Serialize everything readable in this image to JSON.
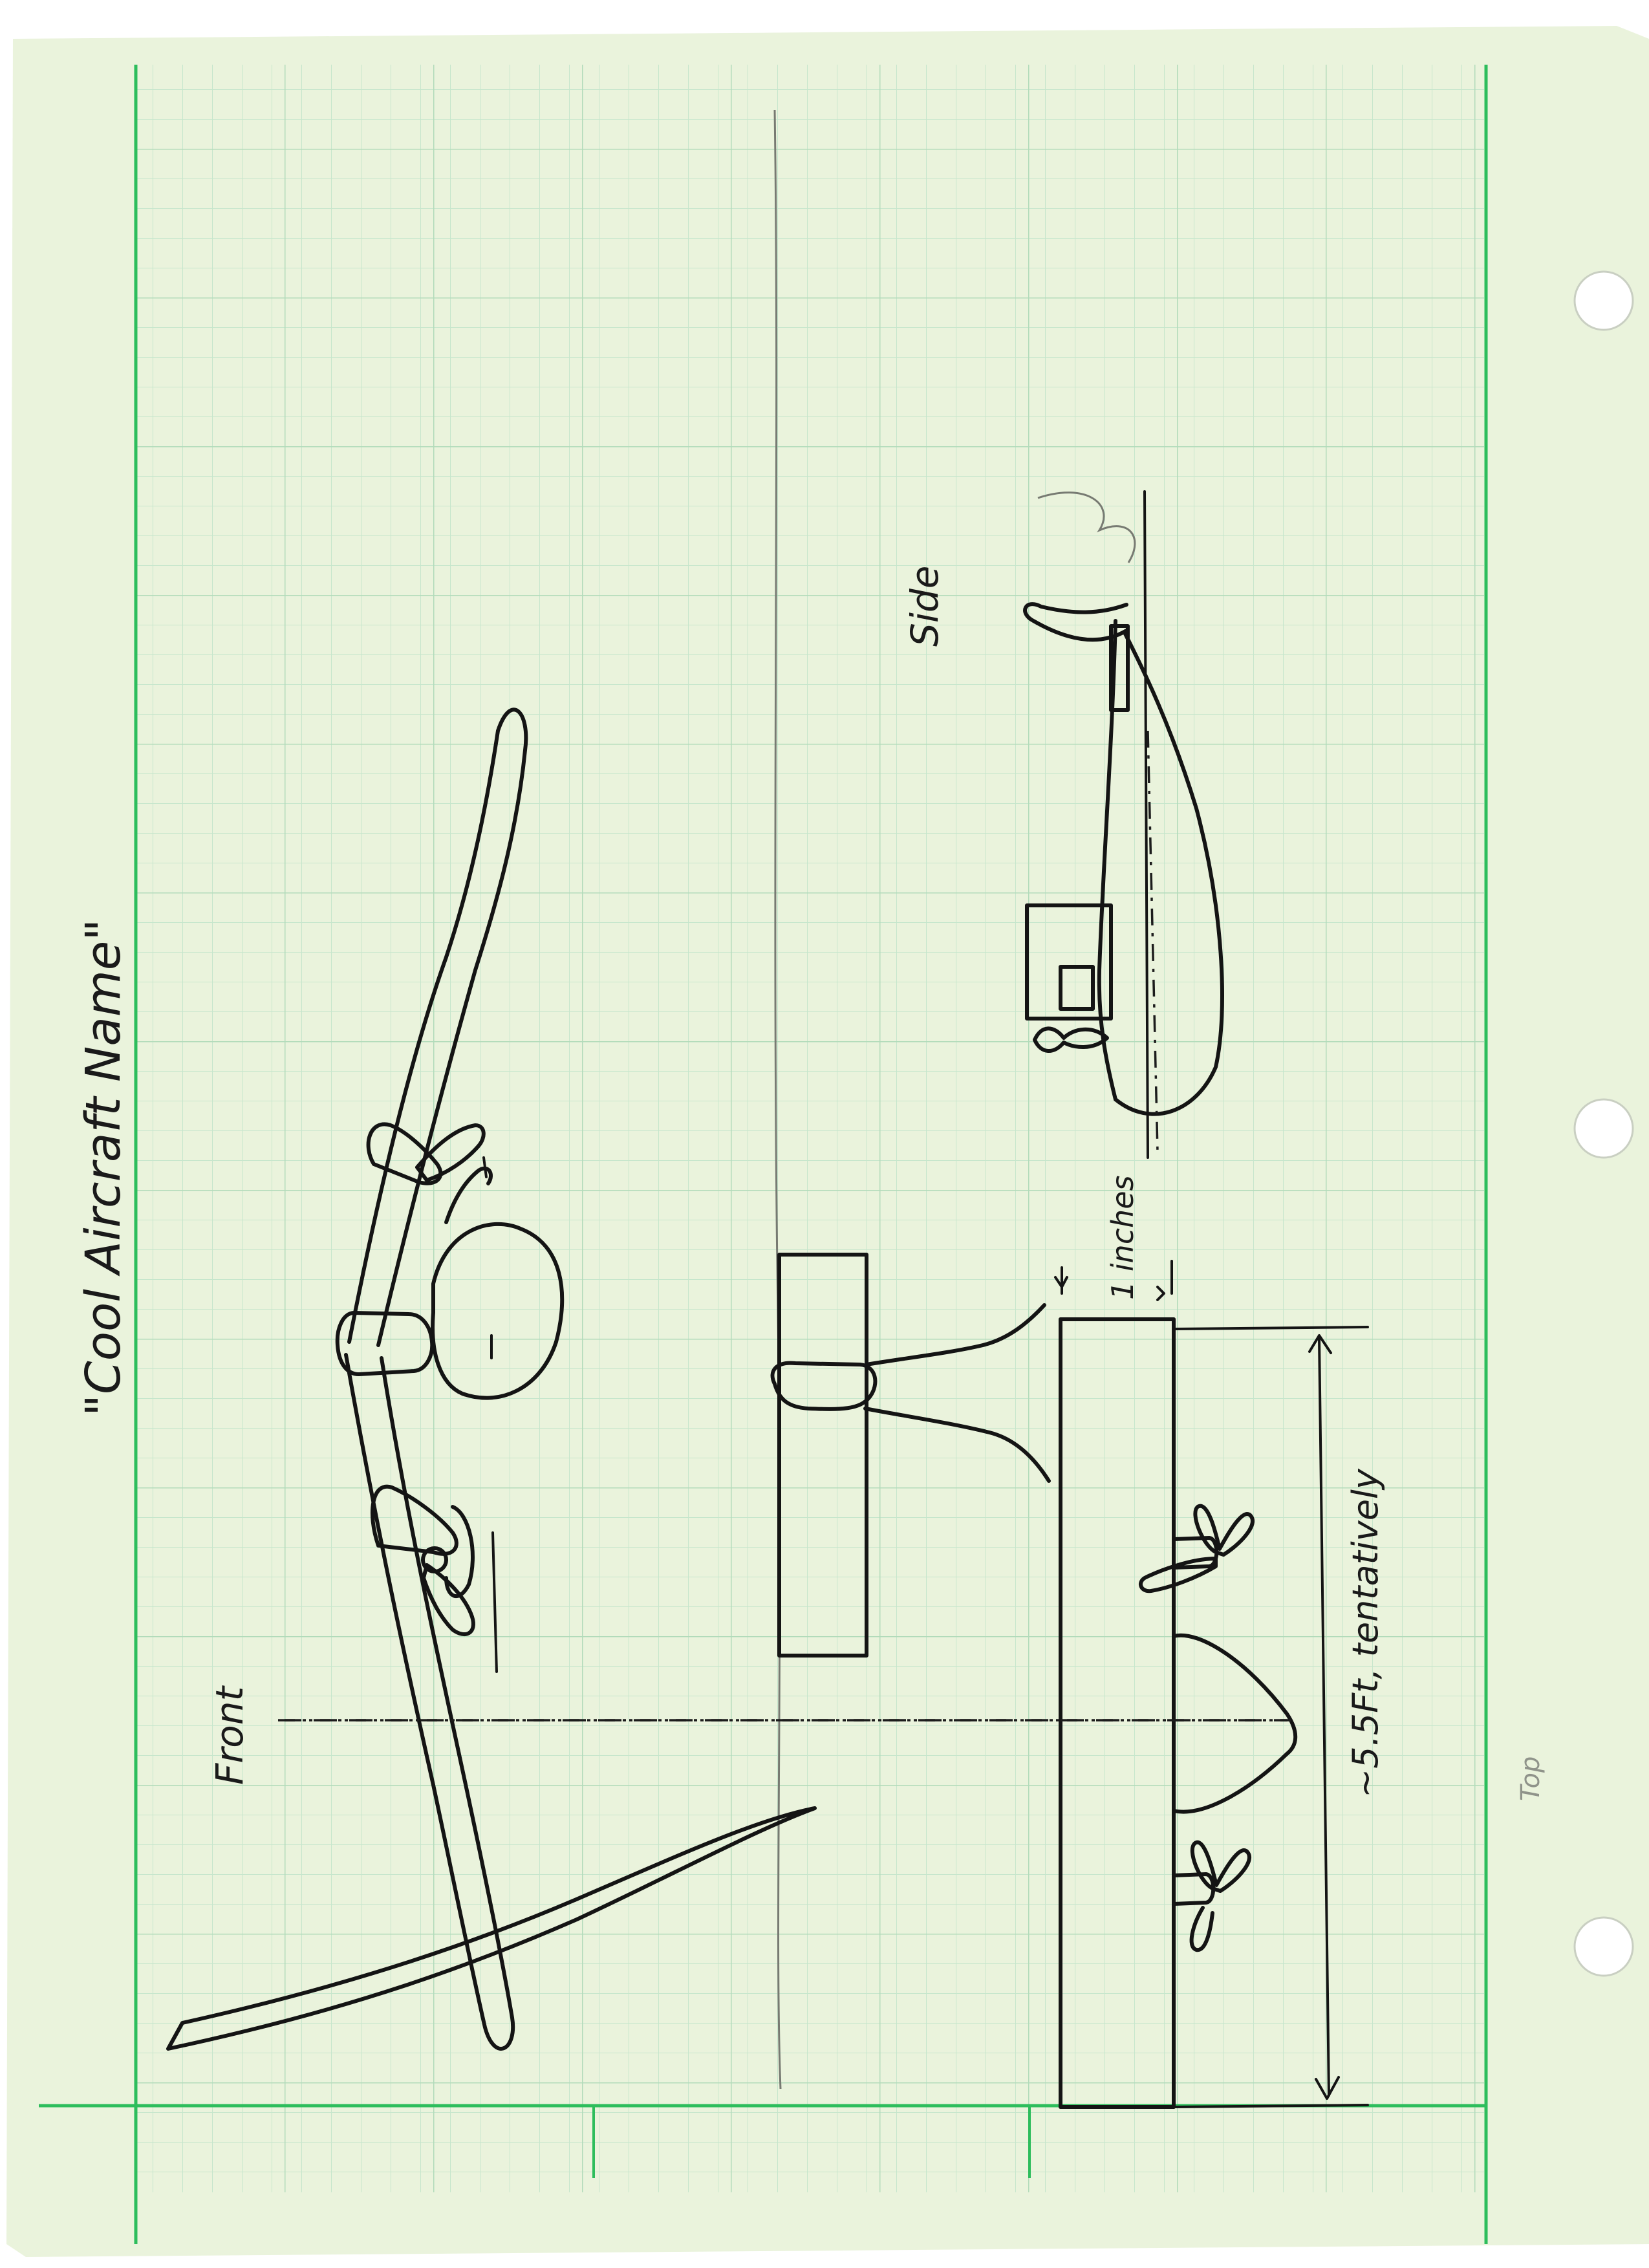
{
  "paper": {
    "color": "#eaf3dc",
    "grid_color": "#bfe2c6",
    "margin_color": "#2dbd5c",
    "holes": 3
  },
  "labels": {
    "title": "\"Cool Aircraft Name\"",
    "front": "Front",
    "side": "Side",
    "top": "Top",
    "dimension_width": "1 inches",
    "dimension_span": "~5.5Ft, tentatively"
  }
}
